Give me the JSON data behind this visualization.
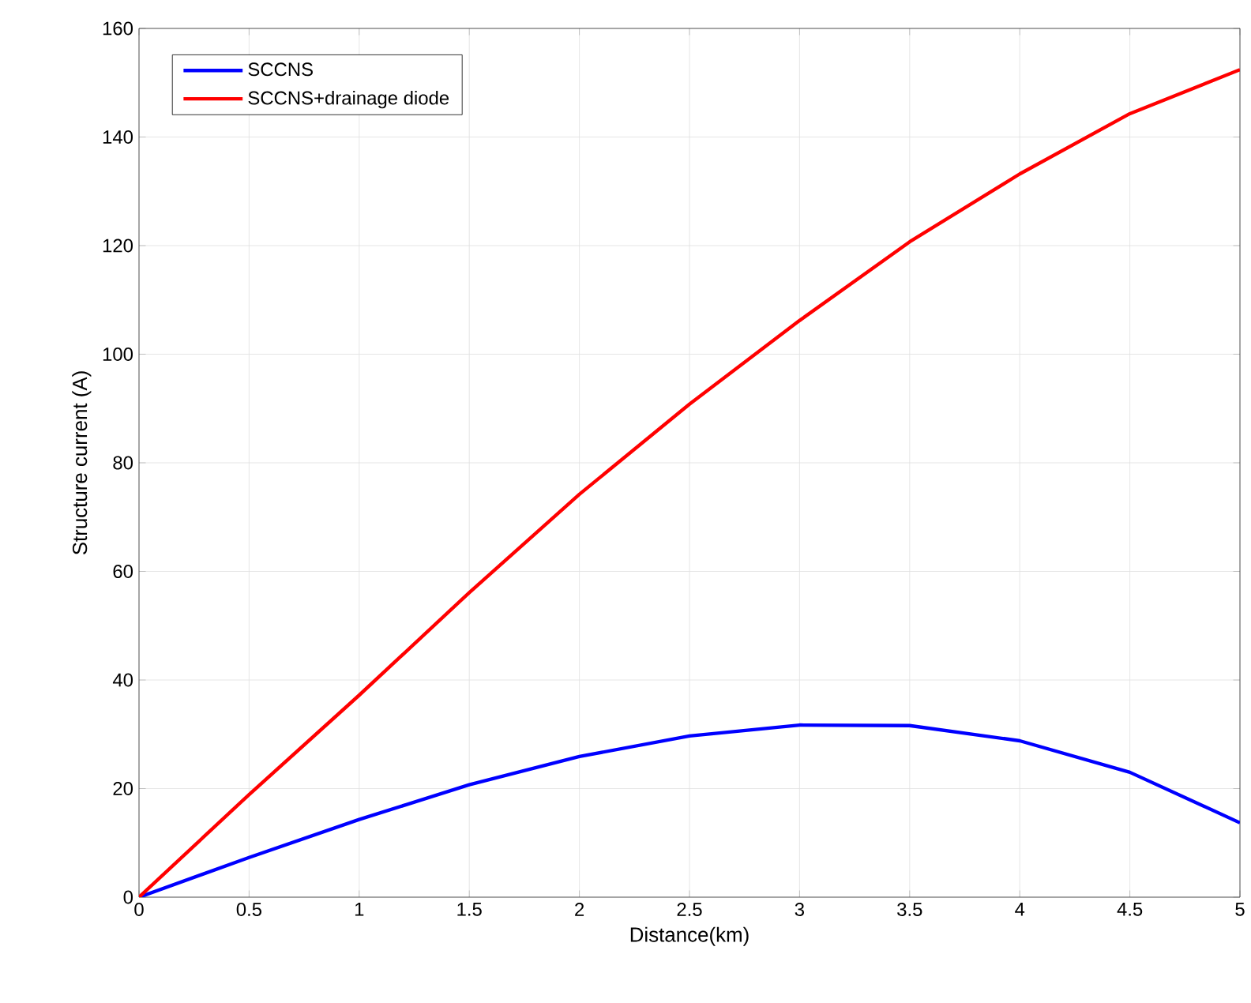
{
  "chart_data": {
    "type": "line",
    "xlabel": "Distance(km)",
    "ylabel": "Structure current (A)",
    "x": [
      0,
      0.5,
      1,
      1.5,
      2,
      2.5,
      3,
      3.5,
      4,
      4.5,
      5
    ],
    "series": [
      {
        "name": "SCCNS",
        "color": "#0000ff",
        "values": [
          0,
          7.3,
          14.3,
          20.7,
          25.9,
          29.7,
          31.7,
          31.6,
          28.8,
          23,
          13.7
        ]
      },
      {
        "name": "SCCNS+drainage diode",
        "color": "#ff0000",
        "values": [
          0,
          18.9,
          37.2,
          56.1,
          74.2,
          90.8,
          106.2,
          120.7,
          133.2,
          144.3,
          152.4
        ]
      }
    ],
    "xlim": [
      0,
      5
    ],
    "ylim": [
      0,
      160
    ],
    "xticks": [
      0,
      0.5,
      1,
      1.5,
      2,
      2.5,
      3,
      3.5,
      4,
      4.5,
      5
    ],
    "yticks": [
      0,
      20,
      40,
      60,
      80,
      100,
      120,
      140,
      160
    ],
    "grid": true,
    "legend": "top left",
    "marker": "none",
    "line_style": "solid"
  }
}
